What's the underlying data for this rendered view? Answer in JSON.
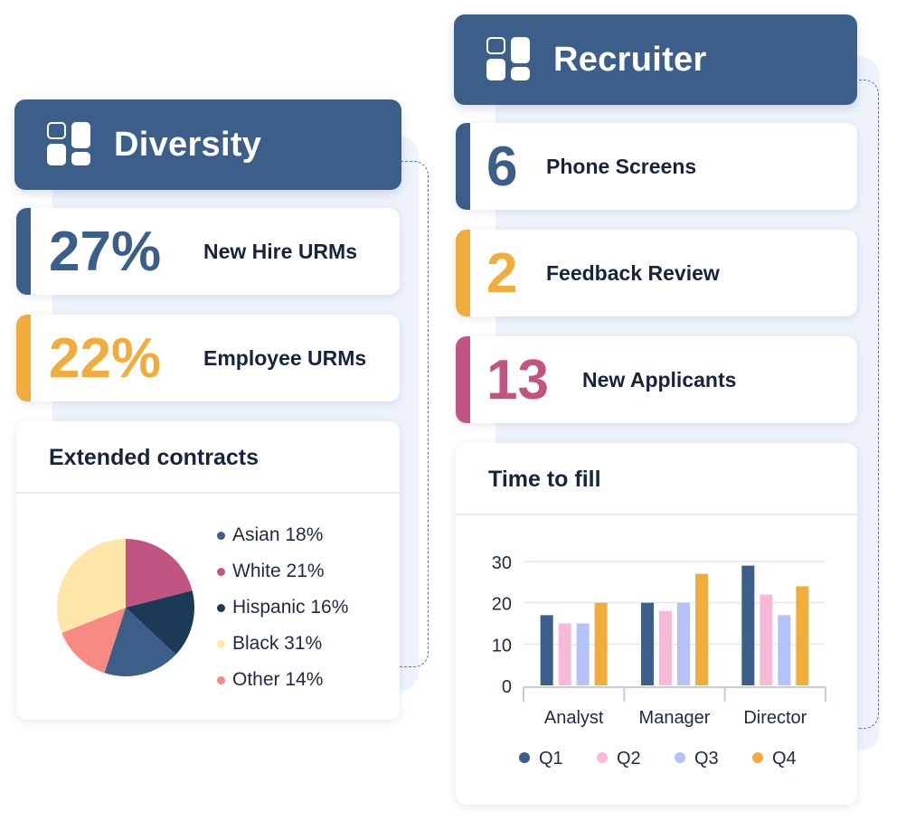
{
  "diversity": {
    "title": "Diversity",
    "stats": [
      {
        "value": "27%",
        "label": "New Hire URMs",
        "color": "#3b5f89"
      },
      {
        "value": "22%",
        "label": "Employee URMs",
        "color": "#f0ad3c"
      }
    ],
    "panel_title": "Extended contracts",
    "chart_data": {
      "type": "pie",
      "slices": [
        {
          "name": "Asian",
          "label": "Asian 18%",
          "value": 18,
          "color": "#3b5f89"
        },
        {
          "name": "White",
          "label": "White 21%",
          "value": 21,
          "color": "#c05581"
        },
        {
          "name": "Hispanic",
          "label": "Hispanic 16%",
          "value": 16,
          "color": "#1a3a57"
        },
        {
          "name": "Black",
          "label": "Black 31%",
          "value": 31,
          "color": "#fde6a8"
        },
        {
          "name": "Other",
          "label": "Other 14%",
          "value": 14,
          "color": "#f78a83"
        }
      ]
    }
  },
  "recruiter": {
    "title": "Recruiter",
    "stats": [
      {
        "value": "6",
        "label": "Phone Screens",
        "color": "#3b5f89"
      },
      {
        "value": "2",
        "label": "Feedback Review",
        "color": "#f0ad3c"
      },
      {
        "value": "13",
        "label": "New Applicants",
        "color": "#c05581"
      }
    ],
    "panel_title": "Time to fill",
    "chart_data": {
      "type": "bar",
      "categories": [
        "Analyst",
        "Manager",
        "Director"
      ],
      "series": [
        {
          "name": "Q1",
          "values": [
            17,
            20,
            29
          ],
          "color": "#3b5f89"
        },
        {
          "name": "Q2",
          "values": [
            15,
            18,
            22
          ],
          "color": "#f8b9d6"
        },
        {
          "name": "Q3",
          "values": [
            15,
            20,
            17
          ],
          "color": "#b5c2f7"
        },
        {
          "name": "Q4",
          "values": [
            20,
            27,
            24
          ],
          "color": "#f0ad3c"
        }
      ],
      "yticks": [
        "0",
        "10",
        "20",
        "30"
      ],
      "ylim": [
        0,
        30
      ]
    }
  }
}
